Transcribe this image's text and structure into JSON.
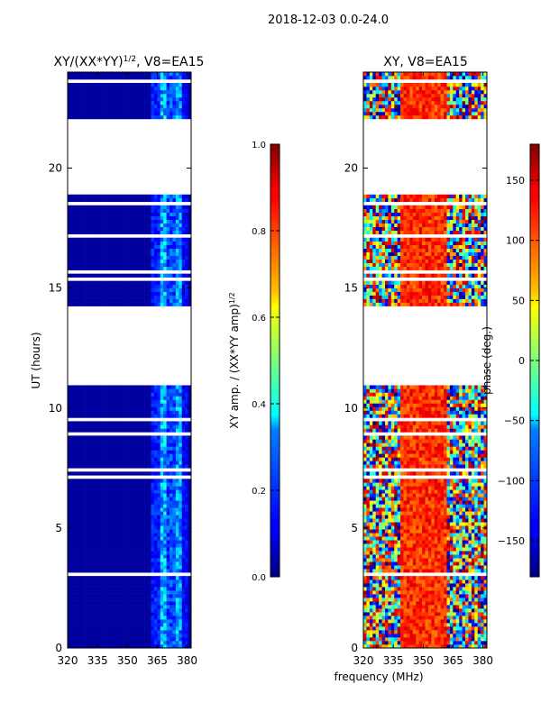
{
  "figure_title": "2018-12-03 0.0-24.0",
  "chart_data": [
    {
      "type": "heatmap",
      "title_main": "XY/(XX*YY)",
      "title_sup": "1/2",
      "title_tail": ", V8=EA15",
      "xlabel": "",
      "ylabel": "UT (hours)",
      "xlim": [
        320,
        382
      ],
      "ylim": [
        0,
        24
      ],
      "xticks": [
        "320",
        "335",
        "350",
        "365",
        "380"
      ],
      "xtick_values": [
        320,
        335,
        350,
        365,
        380
      ],
      "yticks": [
        "0",
        "5",
        "10",
        "15",
        "20"
      ],
      "ytick_values": [
        0,
        5,
        10,
        15,
        20
      ],
      "colorscale": "jet",
      "colorbar": {
        "label_main": "XY amp. / (XX*YY amp)",
        "label_sup": "1/2",
        "min": 0.0,
        "max": 1.0,
        "ticks": [
          "0.0",
          "0.2",
          "0.4",
          "0.6",
          "0.8",
          "1.0"
        ],
        "tick_values": [
          0.0,
          0.2,
          0.4,
          0.6,
          0.8,
          1.0
        ]
      },
      "data_ut_hours": [
        [
          0.0,
          11.0
        ],
        [
          14.2,
          18.9
        ],
        [
          22.0,
          24.0
        ]
      ],
      "background_value": 0.03,
      "band_values": [
        {
          "f_from": 362,
          "f_to": 366,
          "value": 0.15
        },
        {
          "f_from": 366,
          "f_to": 370,
          "value": 0.3
        },
        {
          "f_from": 370,
          "f_to": 374,
          "value": 0.2
        },
        {
          "f_from": 374,
          "f_to": 378,
          "value": 0.27
        },
        {
          "f_from": 378,
          "f_to": 380,
          "value": 0.12
        }
      ]
    },
    {
      "type": "heatmap",
      "title_main": "XY, V8=EA15",
      "xlabel": "frequency (MHz)",
      "ylabel": "",
      "xlim": [
        320,
        382
      ],
      "ylim": [
        0,
        24
      ],
      "xticks": [
        "320",
        "335",
        "350",
        "365",
        "380"
      ],
      "xtick_values": [
        320,
        335,
        350,
        365,
        380
      ],
      "yticks": [
        "0",
        "5",
        "10",
        "15",
        "20"
      ],
      "ytick_values": [
        0,
        5,
        10,
        15,
        20
      ],
      "colorscale": "jet",
      "colorbar": {
        "label": "phase (deg.)",
        "min": -180,
        "max": 180,
        "ticks": [
          "−150",
          "−100",
          "−50",
          "0",
          "50",
          "100",
          "150"
        ],
        "tick_values": [
          -150,
          -100,
          -50,
          0,
          50,
          100,
          150
        ]
      },
      "data_ut_hours": [
        [
          0.0,
          11.0
        ],
        [
          14.2,
          18.9
        ],
        [
          22.0,
          24.0
        ]
      ],
      "phase_center_mhz": 350,
      "phase_center_value_deg": 150
    }
  ]
}
